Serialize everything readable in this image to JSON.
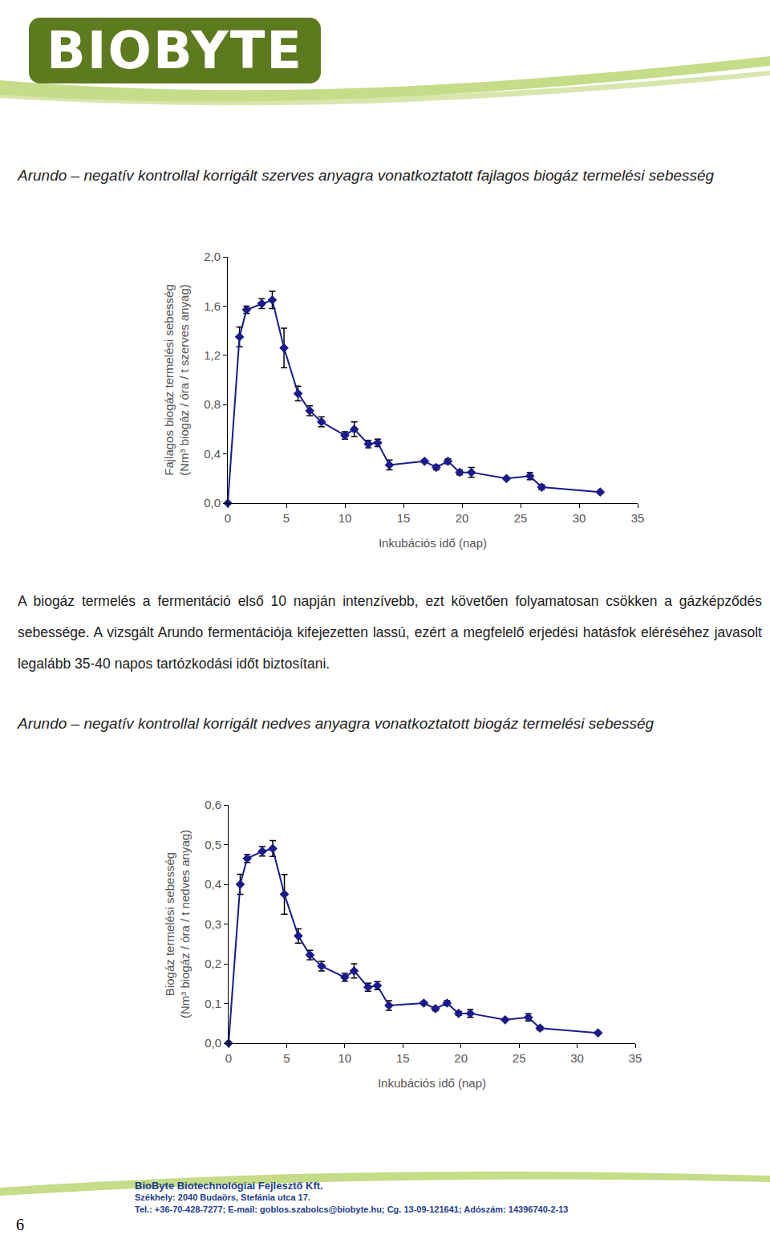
{
  "header": {
    "logo": "BIOBYTE"
  },
  "chart_data": [
    {
      "type": "line",
      "title": "Arundo – negatív kontrollal korrigált szerves anyagra vonatkoztatott fajlagos biogáz termelési sebesség",
      "x_label": "Inkubációs idő (nap)",
      "y_label": [
        "Fajlagos biogáz termelési sebesség",
        "(Nm³ biogáz / óra / t szerves anyag)"
      ],
      "x": [
        0,
        1,
        1.6,
        2.9,
        3.8,
        4.8,
        6,
        7,
        8,
        10,
        10.8,
        12,
        12.8,
        13.8,
        16.8,
        17.8,
        18.8,
        19.8,
        20.8,
        23.8,
        25.8,
        26.8,
        31.8
      ],
      "values": [
        0,
        1.35,
        1.57,
        1.62,
        1.65,
        1.26,
        0.89,
        0.75,
        0.66,
        0.55,
        0.6,
        0.48,
        0.49,
        0.31,
        0.34,
        0.29,
        0.34,
        0.25,
        0.25,
        0.2,
        0.22,
        0.13,
        0.09
      ],
      "errors": [
        0,
        0.08,
        0.03,
        0.04,
        0.07,
        0.16,
        0.06,
        0.04,
        0.04,
        0.03,
        0.06,
        0.03,
        0.03,
        0.04,
        0.01,
        0.02,
        0.02,
        0.02,
        0.04,
        0.01,
        0.03,
        0.02,
        0.01
      ],
      "color": "#1a1a8c",
      "marker": "diamond",
      "grid": false,
      "xlim": [
        0,
        35
      ],
      "xticks": [
        0,
        5,
        10,
        15,
        20,
        25,
        30,
        35
      ],
      "ylim": [
        0,
        2.0
      ],
      "yticks": [
        {
          "value": 0,
          "label": "0,0"
        },
        {
          "value": 0.4,
          "label": "0,4"
        },
        {
          "value": 0.8,
          "label": "0,8"
        },
        {
          "value": 1.2,
          "label": "1,2"
        },
        {
          "value": 1.6,
          "label": "1,6"
        },
        {
          "value": 2.0,
          "label": "2,0"
        }
      ]
    },
    {
      "type": "line",
      "title": "Arundo – negatív kontrollal korrigált nedves anyagra vonatkoztatott biogáz termelési sebesség",
      "x_label": "Inkubációs idő (nap)",
      "y_label": [
        "Biogáz termelési sebesség",
        "(Nm³ biogáz / óra / t nedves anyag)"
      ],
      "x": [
        0,
        1,
        1.6,
        2.9,
        3.8,
        4.8,
        6,
        7,
        8,
        10,
        10.8,
        12,
        12.8,
        13.8,
        16.8,
        17.8,
        18.8,
        19.8,
        20.8,
        23.8,
        25.8,
        26.8,
        31.8
      ],
      "values": [
        0,
        0.4,
        0.465,
        0.483,
        0.49,
        0.375,
        0.27,
        0.222,
        0.194,
        0.166,
        0.182,
        0.141,
        0.145,
        0.095,
        0.101,
        0.087,
        0.101,
        0.075,
        0.075,
        0.059,
        0.065,
        0.038,
        0.026
      ],
      "errors": [
        0,
        0.025,
        0.01,
        0.012,
        0.02,
        0.05,
        0.018,
        0.012,
        0.012,
        0.01,
        0.018,
        0.01,
        0.01,
        0.012,
        0.004,
        0.005,
        0.006,
        0.005,
        0.01,
        0.003,
        0.009,
        0.005,
        0.003
      ],
      "color": "#1a1a8c",
      "marker": "diamond",
      "grid": false,
      "xlim": [
        0,
        35
      ],
      "xticks": [
        0,
        5,
        10,
        15,
        20,
        25,
        30,
        35
      ],
      "ylim": [
        0,
        0.6
      ],
      "yticks": [
        {
          "value": 0,
          "label": "0,0"
        },
        {
          "value": 0.1,
          "label": "0,1"
        },
        {
          "value": 0.2,
          "label": "0,2"
        },
        {
          "value": 0.3,
          "label": "0,3"
        },
        {
          "value": 0.4,
          "label": "0,4"
        },
        {
          "value": 0.5,
          "label": "0,5"
        },
        {
          "value": 0.6,
          "label": "0,6"
        }
      ]
    }
  ],
  "text": "A biogáz termelés a fermentáció első 10 napján intenzívebb, ezt követően folyamatosan csökken a gázképződés sebessége. A vizsgált Arundo fermentációja kifejezetten lassú, ezért a megfelelő erjedési hatásfok eléréséhez javasolt legalább 35-40 napos tartózkodási időt biztosítani.",
  "footer": {
    "company": "BioByte Biotechnológiai Fejlesztő Kft.",
    "address": "Székhely: 2040 Budaörs, Stefánia utca 17.",
    "contact": "Tel.: +36-70-428-7277; E-mail: goblos.szabolcs@biobyte.hu; Cg. 13-09-121641; Adószám: 14396740-2-13"
  },
  "page_number": 6
}
